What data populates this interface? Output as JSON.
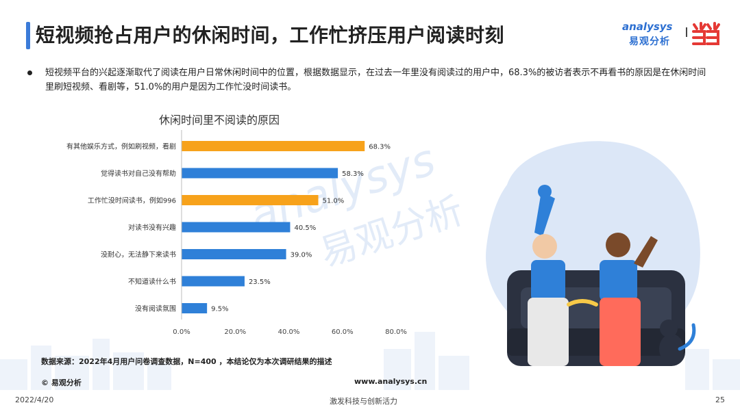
{
  "header": {
    "title": "短视频抢占用户的休闲时间，工作忙挤压用户阅读时刻",
    "logo_en": "analysys",
    "logo_cn": "易观分析",
    "accent": "#3b7bd8"
  },
  "summary": "短视频平台的兴起逐渐取代了阅读在用户日常休闲时间中的位置，根据数据显示，在过去一年里没有阅读过的用户中，68.3%的被访者表示不再看书的原因是在休闲时间里刷短视频、看剧等，51.0%的用户是因为工作忙没时间读书。",
  "chart_data": {
    "type": "bar",
    "orientation": "horizontal",
    "title": "休闲时间里不阅读的原因",
    "categories": [
      "有其他娱乐方式，例如刷视频，看剧",
      "觉得读书对自己没有帮助",
      "工作忙没时间读书，例如996",
      "对读书没有兴趣",
      "没耐心，无法静下来读书",
      "不知道读什么书",
      "没有阅读氛围"
    ],
    "values": [
      68.3,
      58.3,
      51.0,
      40.5,
      39.0,
      23.5,
      9.5
    ],
    "value_labels": [
      "68.3%",
      "58.3%",
      "51.0%",
      "40.5%",
      "39.0%",
      "23.5%",
      "9.5%"
    ],
    "bar_colors": [
      "#f7a21b",
      "#2f80d8",
      "#f7a21b",
      "#2f80d8",
      "#2f80d8",
      "#2f80d8",
      "#2f80d8"
    ],
    "xlim": [
      0,
      80
    ],
    "xticks": [
      0,
      20,
      40,
      60,
      80
    ],
    "xtick_labels": [
      "0.0%",
      "20.0%",
      "40.0%",
      "60.0%",
      "80.0%"
    ],
    "grid": false
  },
  "footer": {
    "source": "数据来源：2022年4月用户问卷调查数据，N=400 ，本结论仅为本次调研结果的描述",
    "copyright": "© 易观分析",
    "website": "www.analysys.cn",
    "date": "2022/4/20",
    "slogan": "激发科技与创新活力",
    "page": "25"
  },
  "watermark": {
    "en": "analysys",
    "cn": "易观分析"
  }
}
